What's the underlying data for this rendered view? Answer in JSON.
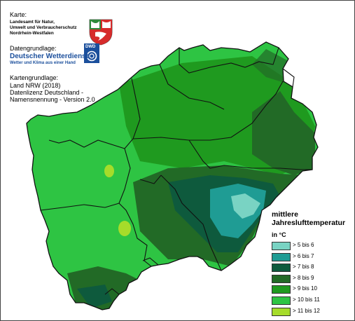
{
  "source": {
    "karte_label": "Karte:",
    "karte_lines": [
      "Landesamt für Natur,",
      "Umwelt und Verbraucherschutz",
      "Nordrhein-Westfalen"
    ],
    "datengrundlage_label": "Datengrundlage:",
    "dwd_name": "Deutscher Wetterdienst",
    "dwd_tagline": "Wetter und Klima aus einer Hand",
    "dwd_logo_text": "DWD",
    "kartengrundlage_label": "Kartengrundlage:",
    "kartengrundlage_lines": [
      "Land NRW (2018)",
      "Datenlizenz Deutschland -",
      "Namensnennung - Version 2.0"
    ]
  },
  "legend": {
    "title_lines": [
      "mittlere",
      "Jahreslufttemperatur"
    ],
    "unit": "in °C",
    "classes": [
      {
        "label": ">   5 bis   6",
        "color": "#79d3c3"
      },
      {
        "label": ">   6 bis   7",
        "color": "#1f9c94"
      },
      {
        "label": ">   7 bis   8",
        "color": "#0e5a3d"
      },
      {
        "label": ">   8 bis   9",
        "color": "#226a26"
      },
      {
        "label": ">   9 bis 10",
        "color": "#1f9a1f"
      },
      {
        "label": "> 10 bis 11",
        "color": "#2ec443"
      },
      {
        "label": "> 11 bis 12",
        "color": "#a6dc2a"
      }
    ]
  },
  "map": {
    "logo": "nrw-coat-of-arms-icon",
    "boundary_color": "#111111"
  }
}
